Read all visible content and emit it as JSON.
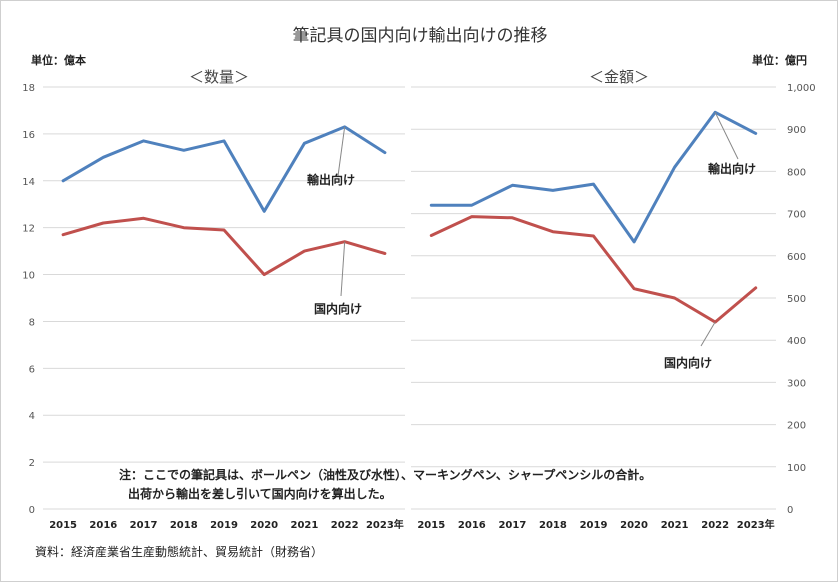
{
  "title": "筆記具の国内向け輸出向けの推移",
  "note": {
    "line1": "注：ここでの筆記具は、ボールペン（油性及び水性）、マーキングペン、シャープペンシルの合計。",
    "line2": "出荷から輸出を差し引いて国内向けを算出した。"
  },
  "source": "資料：経済産業省生産動態統計、貿易統計（財務省）",
  "colors": {
    "export": "#4f81bd",
    "domestic": "#c0504d",
    "grid": "#d9d9d9"
  },
  "chart_data": [
    {
      "type": "line",
      "title": "＜数量＞",
      "unit_label": "単位：億本",
      "x": [
        "2015",
        "2016",
        "2017",
        "2018",
        "2019",
        "2020",
        "2021",
        "2022",
        "2023年"
      ],
      "ylim": [
        0,
        18
      ],
      "yticks": [
        "0",
        "2",
        "4",
        "6",
        "8",
        "10",
        "12",
        "14",
        "16",
        "18"
      ],
      "grid": true,
      "series": [
        {
          "name": "輸出向け",
          "color": "#4f81bd",
          "values": [
            14.0,
            15.0,
            15.7,
            15.3,
            15.7,
            12.7,
            15.6,
            16.3,
            15.2
          ]
        },
        {
          "name": "国内向け",
          "color": "#c0504d",
          "values": [
            11.7,
            12.2,
            12.4,
            12.0,
            11.9,
            10.0,
            11.0,
            11.4,
            10.9
          ]
        }
      ]
    },
    {
      "type": "line",
      "title": "＜金額＞",
      "unit_label": "単位：億円",
      "x": [
        "2015",
        "2016",
        "2017",
        "2018",
        "2019",
        "2020",
        "2021",
        "2022",
        "2023年"
      ],
      "ylim": [
        0,
        1000
      ],
      "yticks": [
        "0",
        "100",
        "200",
        "300",
        "400",
        "500",
        "600",
        "700",
        "800",
        "900",
        "1,000"
      ],
      "grid": true,
      "series": [
        {
          "name": "輸出向け",
          "color": "#4f81bd",
          "values": [
            720,
            720,
            767,
            755,
            770,
            633,
            810,
            940,
            890
          ]
        },
        {
          "name": "国内向け",
          "color": "#c0504d",
          "values": [
            648,
            693,
            690,
            657,
            647,
            522,
            500,
            443,
            524
          ]
        }
      ]
    }
  ]
}
